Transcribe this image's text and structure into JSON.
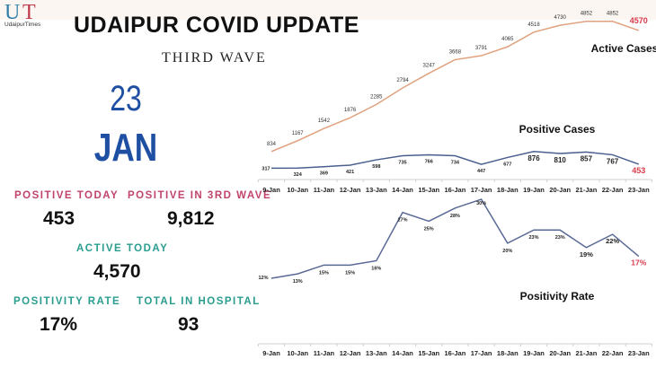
{
  "header": {
    "logo_letters": [
      "U",
      "T"
    ],
    "logo_caption": "UdaipurTimes",
    "title": "UDAIPUR COVID UPDATE",
    "subtitle": "THIRD WAVE"
  },
  "date": {
    "day": "23",
    "month": "JAN"
  },
  "stats": {
    "positive_today": {
      "label": "POSITIVE TODAY",
      "value": "453"
    },
    "positive_third_wave": {
      "label": "POSITIVE IN 3RD WAVE",
      "value": "9,812"
    },
    "active_today": {
      "label": "ACTIVE TODAY",
      "value": "4,570"
    },
    "positivity_rate": {
      "label": "POSITIVITY RATE",
      "value": "17%"
    },
    "total_in_hospital": {
      "label": "TOTAL IN HOSPITAL",
      "value": "93"
    }
  },
  "colors": {
    "active_line": "#e0a27e",
    "positive_line": "#4a5f8f",
    "positivity_line": "#5a6a96",
    "highlight": "#d93a4a",
    "date_blue": "#1f4fa3",
    "label_pink": "#c0446a",
    "label_teal": "#2a9d8f"
  },
  "chart_data": [
    {
      "type": "line",
      "title": "Active Cases / Positive Cases",
      "categories": [
        "9-Jan",
        "10-Jan",
        "11-Jan",
        "12-Jan",
        "13-Jan",
        "14-Jan",
        "15-Jan",
        "16-Jan",
        "17-Jan",
        "18-Jan",
        "19-Jan",
        "20-Jan",
        "21-Jan",
        "22-Jan",
        "23-Jan"
      ],
      "series": [
        {
          "name": "Active Cases",
          "values": [
            834,
            1167,
            1542,
            1876,
            2285,
            2794,
            3247,
            3668,
            3791,
            4065,
            4518,
            4730,
            4852,
            4852,
            4570
          ]
        },
        {
          "name": "Positive Cases",
          "values": [
            317,
            324,
            369,
            421,
            598,
            735,
            766,
            734,
            447,
            677,
            876,
            810,
            857,
            767,
            453
          ]
        }
      ],
      "xlabel": "",
      "ylabel": "",
      "grid": false,
      "legend_position": "inline labels"
    },
    {
      "type": "line",
      "title": "Positivity Rate",
      "categories": [
        "9-Jan",
        "10-Jan",
        "11-Jan",
        "12-Jan",
        "13-Jan",
        "14-Jan",
        "15-Jan",
        "16-Jan",
        "17-Jan",
        "18-Jan",
        "19-Jan",
        "20-Jan",
        "21-Jan",
        "22-Jan",
        "23-Jan"
      ],
      "series": [
        {
          "name": "Positivity Rate",
          "values": [
            12,
            13,
            15,
            15,
            16,
            27,
            25,
            28,
            30,
            20,
            23,
            23,
            19,
            22,
            17
          ],
          "unit": "%"
        }
      ],
      "xlabel": "",
      "ylabel": "",
      "grid": false
    }
  ]
}
